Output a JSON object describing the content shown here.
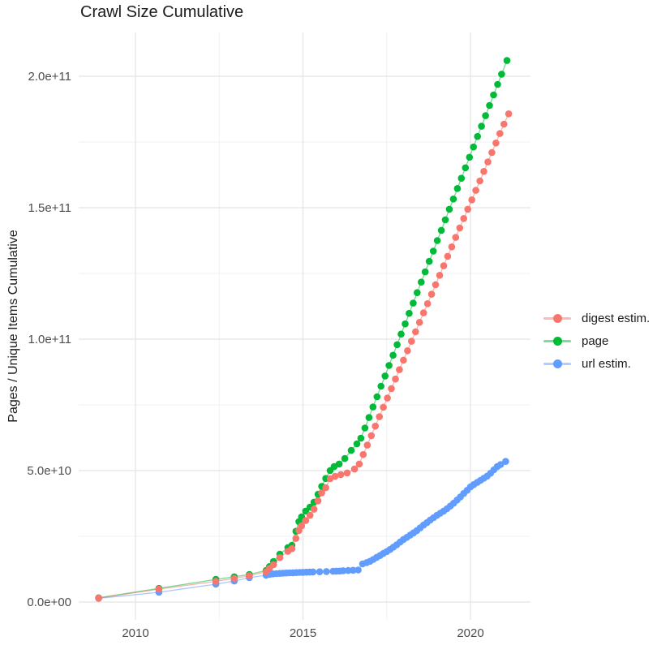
{
  "chart_data": {
    "type": "scatter",
    "title": "Crawl Size Cumulative",
    "xlabel": "",
    "ylabel": "Pages / Unique Items Cumulative",
    "legend_position": "right",
    "grid": true,
    "x_major_ticks": [
      {
        "value": 2010,
        "label": "2010"
      },
      {
        "value": 2015,
        "label": "2015"
      },
      {
        "value": 2020,
        "label": "2020"
      }
    ],
    "x_minor_ticks": [
      2012.5,
      2017.5
    ],
    "y_major_ticks": [
      {
        "value_e9": 0,
        "label": "0.0e+00"
      },
      {
        "value_e9": 50,
        "label": "5.0e+10"
      },
      {
        "value_e9": 100,
        "label": "1.0e+11"
      },
      {
        "value_e9": 150,
        "label": "1.5e+11"
      },
      {
        "value_e9": 200,
        "label": "2.0e+11"
      }
    ],
    "y_minor_ticks_e9": [
      25,
      75,
      125,
      175
    ],
    "xlim": [
      2008.3,
      2021.8
    ],
    "ylim_e9": [
      -7,
      216
    ],
    "y_values_unit": "1e9 (billions)",
    "series": [
      {
        "name": "digest estim.",
        "color": "#F8766D",
        "points": [
          [
            2008.9,
            1.5
          ],
          [
            2010.7,
            4.9
          ],
          [
            2012.4,
            7.9
          ],
          [
            2012.95,
            9.0
          ],
          [
            2013.4,
            10.0
          ],
          [
            2013.9,
            11.5
          ],
          [
            2014.0,
            12.8
          ],
          [
            2014.12,
            14.2
          ],
          [
            2014.31,
            16.9
          ],
          [
            2014.55,
            19.3
          ],
          [
            2014.67,
            20.3
          ],
          [
            2014.79,
            24.2
          ],
          [
            2014.88,
            27.2
          ],
          [
            2014.96,
            29.0
          ],
          [
            2015.08,
            31.0
          ],
          [
            2015.21,
            33.0
          ],
          [
            2015.33,
            35.3
          ],
          [
            2015.45,
            38.5
          ],
          [
            2015.56,
            41.5
          ],
          [
            2015.68,
            43.5
          ],
          [
            2015.81,
            46.9
          ],
          [
            2015.96,
            47.8
          ],
          [
            2016.13,
            48.5
          ],
          [
            2016.32,
            49.1
          ],
          [
            2016.54,
            50.6
          ],
          [
            2016.68,
            52.5
          ],
          [
            2016.8,
            56.1
          ],
          [
            2016.92,
            59.7
          ],
          [
            2017.04,
            63.3
          ],
          [
            2017.16,
            66.9
          ],
          [
            2017.28,
            70.5
          ],
          [
            2017.4,
            74.1
          ],
          [
            2017.52,
            77.6
          ],
          [
            2017.64,
            81.2
          ],
          [
            2017.76,
            84.8
          ],
          [
            2017.88,
            88.4
          ],
          [
            2018.0,
            92.0
          ],
          [
            2018.12,
            95.6
          ],
          [
            2018.24,
            99.2
          ],
          [
            2018.36,
            102.8
          ],
          [
            2018.48,
            106.4
          ],
          [
            2018.6,
            110.0
          ],
          [
            2018.72,
            113.5
          ],
          [
            2018.84,
            117.1
          ],
          [
            2018.96,
            120.7
          ],
          [
            2019.08,
            124.3
          ],
          [
            2019.2,
            127.9
          ],
          [
            2019.32,
            131.5
          ],
          [
            2019.44,
            135.1
          ],
          [
            2019.56,
            138.7
          ],
          [
            2019.68,
            142.3
          ],
          [
            2019.8,
            145.9
          ],
          [
            2019.92,
            149.4
          ],
          [
            2020.04,
            153.0
          ],
          [
            2020.16,
            156.6
          ],
          [
            2020.28,
            160.2
          ],
          [
            2020.4,
            163.8
          ],
          [
            2020.52,
            167.4
          ],
          [
            2020.64,
            171.0
          ],
          [
            2020.76,
            174.6
          ],
          [
            2020.88,
            178.2
          ],
          [
            2021.0,
            181.8
          ],
          [
            2021.14,
            185.7
          ]
        ]
      },
      {
        "name": "page",
        "color": "#00BA38",
        "points": [
          [
            2008.9,
            1.6
          ],
          [
            2010.7,
            5.2
          ],
          [
            2012.4,
            8.6
          ],
          [
            2012.95,
            9.6
          ],
          [
            2013.4,
            10.5
          ],
          [
            2013.9,
            12.0
          ],
          [
            2014.0,
            13.5
          ],
          [
            2014.12,
            15.4
          ],
          [
            2014.31,
            18.2
          ],
          [
            2014.55,
            20.7
          ],
          [
            2014.67,
            21.6
          ],
          [
            2014.79,
            26.9
          ],
          [
            2014.88,
            30.6
          ],
          [
            2014.96,
            32.4
          ],
          [
            2015.08,
            34.6
          ],
          [
            2015.21,
            36.1
          ],
          [
            2015.33,
            38.0
          ],
          [
            2015.45,
            41.0
          ],
          [
            2015.56,
            44.0
          ],
          [
            2015.68,
            47.0
          ],
          [
            2015.81,
            50.0
          ],
          [
            2015.93,
            51.5
          ],
          [
            2016.08,
            52.5
          ],
          [
            2016.25,
            54.6
          ],
          [
            2016.44,
            57.7
          ],
          [
            2016.61,
            60.2
          ],
          [
            2016.73,
            62.3
          ],
          [
            2016.85,
            66.2
          ],
          [
            2016.97,
            70.2
          ],
          [
            2017.09,
            74.2
          ],
          [
            2017.21,
            78.1
          ],
          [
            2017.33,
            82.1
          ],
          [
            2017.45,
            86.0
          ],
          [
            2017.57,
            90.0
          ],
          [
            2017.69,
            93.9
          ],
          [
            2017.81,
            97.9
          ],
          [
            2017.93,
            101.9
          ],
          [
            2018.05,
            105.8
          ],
          [
            2018.17,
            109.8
          ],
          [
            2018.29,
            113.7
          ],
          [
            2018.41,
            117.7
          ],
          [
            2018.53,
            121.7
          ],
          [
            2018.65,
            125.6
          ],
          [
            2018.77,
            129.6
          ],
          [
            2018.89,
            133.5
          ],
          [
            2019.01,
            137.5
          ],
          [
            2019.13,
            141.4
          ],
          [
            2019.25,
            145.4
          ],
          [
            2019.37,
            149.4
          ],
          [
            2019.49,
            153.3
          ],
          [
            2019.61,
            157.3
          ],
          [
            2019.73,
            161.2
          ],
          [
            2019.85,
            165.2
          ],
          [
            2019.97,
            169.2
          ],
          [
            2020.09,
            173.1
          ],
          [
            2020.21,
            177.1
          ],
          [
            2020.33,
            181.0
          ],
          [
            2020.45,
            185.0
          ],
          [
            2020.57,
            188.9
          ],
          [
            2020.69,
            192.9
          ],
          [
            2020.81,
            196.9
          ],
          [
            2020.93,
            200.8
          ],
          [
            2021.09,
            206.0
          ]
        ]
      },
      {
        "name": "url estim.",
        "color": "#619CFF",
        "points": [
          [
            2008.9,
            1.4
          ],
          [
            2010.7,
            3.7
          ],
          [
            2012.4,
            6.8
          ],
          [
            2012.95,
            8.0
          ],
          [
            2013.4,
            9.3
          ],
          [
            2013.9,
            10.2
          ],
          [
            2014.0,
            10.5
          ],
          [
            2014.1,
            10.7
          ],
          [
            2014.2,
            10.8
          ],
          [
            2014.3,
            10.9
          ],
          [
            2014.4,
            11.0
          ],
          [
            2014.5,
            11.05
          ],
          [
            2014.6,
            11.1
          ],
          [
            2014.7,
            11.15
          ],
          [
            2014.8,
            11.2
          ],
          [
            2014.9,
            11.25
          ],
          [
            2015.0,
            11.3
          ],
          [
            2015.1,
            11.35
          ],
          [
            2015.2,
            11.4
          ],
          [
            2015.3,
            11.45
          ],
          [
            2015.5,
            11.5
          ],
          [
            2015.7,
            11.6
          ],
          [
            2015.9,
            11.7
          ],
          [
            2016.0,
            11.75
          ],
          [
            2016.1,
            11.8
          ],
          [
            2016.2,
            11.9
          ],
          [
            2016.35,
            12.0
          ],
          [
            2016.5,
            12.1
          ],
          [
            2016.65,
            12.2
          ],
          [
            2016.78,
            14.5
          ],
          [
            2016.9,
            15.0
          ],
          [
            2017.0,
            15.5
          ],
          [
            2017.1,
            16.2
          ],
          [
            2017.2,
            17.0
          ],
          [
            2017.3,
            17.7
          ],
          [
            2017.4,
            18.5
          ],
          [
            2017.5,
            19.2
          ],
          [
            2017.6,
            20.0
          ],
          [
            2017.7,
            20.9
          ],
          [
            2017.8,
            21.8
          ],
          [
            2017.9,
            22.8
          ],
          [
            2018.0,
            23.8
          ],
          [
            2018.1,
            24.6
          ],
          [
            2018.2,
            25.5
          ],
          [
            2018.3,
            26.3
          ],
          [
            2018.4,
            27.2
          ],
          [
            2018.5,
            28.2
          ],
          [
            2018.6,
            29.3
          ],
          [
            2018.7,
            30.2
          ],
          [
            2018.8,
            31.2
          ],
          [
            2018.9,
            32.1
          ],
          [
            2019.0,
            33.0
          ],
          [
            2019.1,
            33.8
          ],
          [
            2019.2,
            34.6
          ],
          [
            2019.3,
            35.5
          ],
          [
            2019.4,
            36.5
          ],
          [
            2019.5,
            37.6
          ],
          [
            2019.6,
            38.8
          ],
          [
            2019.7,
            40.0
          ],
          [
            2019.8,
            41.3
          ],
          [
            2019.9,
            42.5
          ],
          [
            2020.0,
            43.8
          ],
          [
            2020.1,
            44.7
          ],
          [
            2020.2,
            45.5
          ],
          [
            2020.3,
            46.3
          ],
          [
            2020.4,
            47.1
          ],
          [
            2020.5,
            47.9
          ],
          [
            2020.6,
            49.0
          ],
          [
            2020.7,
            50.3
          ],
          [
            2020.8,
            51.5
          ],
          [
            2020.9,
            52.3
          ],
          [
            2021.05,
            53.5
          ]
        ]
      }
    ],
    "colors": {
      "major_grid": "#e4e4e4",
      "minor_grid": "#f2f2f2",
      "tick_label": "#4d4d4d",
      "text": "#1c1c1c",
      "background": "#ffffff"
    }
  }
}
